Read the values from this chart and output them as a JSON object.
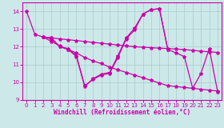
{
  "bg_color": "#cce8e8",
  "line_color": "#cc00aa",
  "grid_color": "#aacccc",
  "xlabel": "Windchill (Refroidissement éolien,°C)",
  "xlim": [
    -0.5,
    23.5
  ],
  "ylim": [
    9,
    14.5
  ],
  "yticks": [
    9,
    10,
    11,
    12,
    13,
    14
  ],
  "xticks": [
    0,
    1,
    2,
    3,
    4,
    5,
    6,
    7,
    8,
    9,
    10,
    11,
    12,
    13,
    14,
    15,
    16,
    17,
    18,
    19,
    20,
    21,
    22,
    23
  ],
  "line1_x": [
    0,
    1,
    2,
    3,
    4,
    5,
    6,
    7,
    8,
    9,
    10,
    11,
    12,
    13,
    14,
    15,
    16,
    17
  ],
  "line1_y": [
    14.0,
    12.7,
    12.55,
    12.5,
    12.0,
    11.85,
    11.45,
    9.75,
    10.2,
    10.45,
    10.55,
    11.5,
    12.5,
    13.05,
    13.85,
    14.1,
    14.15,
    11.85
  ],
  "line2_x": [
    2,
    3,
    4,
    5,
    6,
    7,
    8,
    9,
    10,
    11,
    12,
    13,
    14,
    15,
    16,
    17,
    18,
    19,
    20,
    21,
    22,
    23
  ],
  "line2_y": [
    12.55,
    12.45,
    12.0,
    11.9,
    11.5,
    9.8,
    10.15,
    10.4,
    10.5,
    11.4,
    12.45,
    12.95,
    13.85,
    14.1,
    14.15,
    11.85,
    11.65,
    11.45,
    9.65,
    10.5,
    11.9,
    9.45
  ],
  "line3_x": [
    2,
    3,
    4,
    5,
    6,
    7,
    8,
    9,
    10,
    11,
    12,
    13,
    14,
    15,
    16,
    17,
    18,
    19,
    20,
    21,
    22,
    23
  ],
  "line3_y": [
    12.55,
    12.3,
    12.05,
    11.85,
    11.65,
    11.4,
    11.2,
    11.05,
    10.85,
    10.7,
    10.55,
    10.4,
    10.25,
    10.1,
    9.95,
    9.8,
    9.75,
    9.7,
    9.65,
    9.6,
    9.55,
    9.5
  ],
  "line4_x": [
    2,
    3,
    4,
    5,
    6,
    7,
    8,
    9,
    10,
    11,
    12,
    13,
    14,
    15,
    16,
    17,
    18,
    19,
    20,
    21,
    22,
    23
  ],
  "line4_y": [
    12.55,
    12.5,
    12.45,
    12.4,
    12.35,
    12.3,
    12.25,
    12.2,
    12.15,
    12.1,
    12.05,
    12.0,
    11.98,
    11.95,
    11.92,
    11.9,
    11.87,
    11.84,
    11.8,
    11.75,
    11.72,
    11.68
  ]
}
